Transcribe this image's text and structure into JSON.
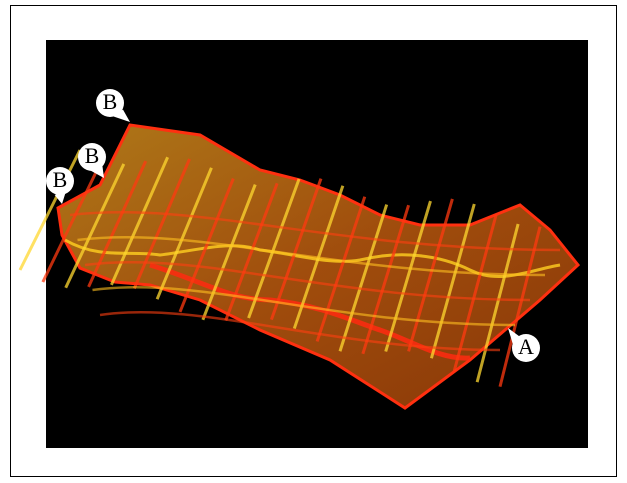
{
  "labels": [
    "B",
    "B",
    "B",
    "A"
  ]
}
